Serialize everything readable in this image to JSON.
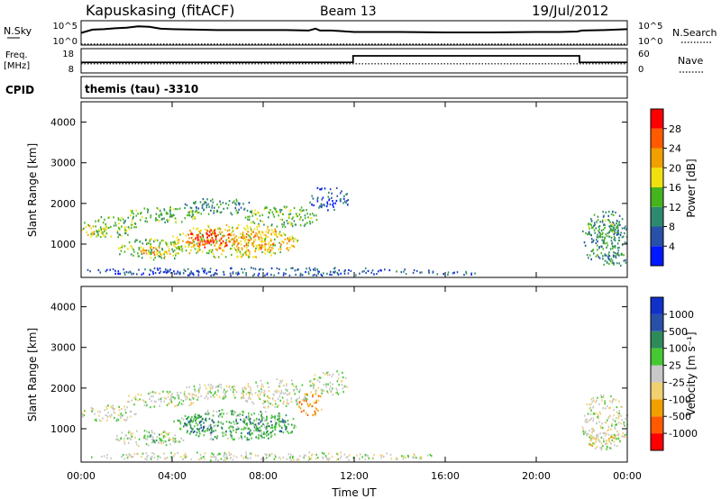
{
  "header": {
    "station": "Kapuskasing (fitACF)",
    "beam": "Beam 13",
    "date": "19/Jul/2012",
    "cpid": "themis (tau) -3310"
  },
  "strip_labels": {
    "nsky": "N.Sky",
    "nsearch": "N.Search",
    "freq_top": "Freq.",
    "freq_unit": "[MHz]",
    "cpid_label": "CPID",
    "nave": "Nave",
    "nsky_ticks": [
      "10^5",
      "10^0"
    ],
    "nsearch_ticks": [
      "10^5",
      "10^0"
    ],
    "freq_ticks": [
      "18",
      "8"
    ],
    "nave_ticks": [
      "60",
      "0"
    ]
  },
  "colors": {
    "power": [
      "#0018ff",
      "#2850a8",
      "#2e8a6e",
      "#46b41e",
      "#f0e010",
      "#f0a000",
      "#ff5a00",
      "#ff0000"
    ],
    "velocity": [
      "#ff0000",
      "#ff5a00",
      "#f0a000",
      "#f0d070",
      "#c8c8c8",
      "#46c832",
      "#2e8a5a",
      "#2850a8",
      "#1030c8"
    ],
    "ground_scatter": "#c0c0c0"
  },
  "chart_data": [
    {
      "type": "line",
      "panel": "noise",
      "series": [
        {
          "name": "N.Sky",
          "style": "solid",
          "x": [
            0,
            0.5,
            1,
            1.5,
            2,
            2.5,
            3,
            3.5,
            4,
            5,
            6,
            7,
            8,
            9,
            10,
            10.3,
            10.5,
            11,
            12,
            14,
            16,
            18,
            20,
            21,
            21.8,
            22,
            23,
            24
          ],
          "y": [
            2.4,
            3.1,
            3.2,
            3.4,
            3.5,
            3.8,
            3.7,
            3.3,
            3.2,
            3.1,
            3.0,
            3.0,
            3.0,
            3.0,
            2.9,
            3.3,
            2.9,
            2.9,
            2.6,
            2.6,
            2.5,
            2.5,
            2.6,
            2.6,
            2.7,
            2.9,
            3.0,
            3.2
          ]
        },
        {
          "name": "N.Search",
          "style": "dotted",
          "x": [
            0,
            24
          ],
          "y": [
            0,
            0
          ]
        }
      ],
      "ylim": [
        0,
        5
      ]
    },
    {
      "type": "line",
      "panel": "frequency",
      "series": [
        {
          "name": "Freq.",
          "style": "solid",
          "x": [
            0,
            11.95,
            11.95,
            21.9,
            21.9,
            24
          ],
          "y": [
            12.3,
            12.3,
            15.2,
            15.2,
            12.3,
            12.3
          ]
        },
        {
          "name": "Nave",
          "style": "dotted",
          "x": [
            0,
            24
          ],
          "y": [
            22,
            22
          ],
          "axis": "right"
        }
      ],
      "ylim": [
        8,
        18
      ],
      "y2lim": [
        0,
        60
      ]
    },
    {
      "type": "heatmap",
      "panel": "power",
      "xlabel": "",
      "ylabel": "Slant Range [km]",
      "xlim": [
        0,
        24
      ],
      "ylim": [
        180,
        4500
      ],
      "yticks": [
        "1000",
        "2000",
        "3000",
        "4000"
      ],
      "colorbar": {
        "label": "Power [dB]",
        "ticks": [
          "4",
          "8",
          "12",
          "16",
          "20",
          "24",
          "28"
        ]
      },
      "regions": [
        {
          "t0": 0.0,
          "t1": 2.4,
          "r0": 1150,
          "r1": 1650,
          "level": 3
        },
        {
          "t0": 0.0,
          "t1": 1.2,
          "r0": 1150,
          "r1": 1450,
          "level": 4
        },
        {
          "t0": 2.0,
          "t1": 5.2,
          "r0": 1500,
          "r1": 1900,
          "level": 3
        },
        {
          "t0": 4.5,
          "t1": 7.5,
          "r0": 1700,
          "r1": 2100,
          "level": 2
        },
        {
          "t0": 7.2,
          "t1": 10.5,
          "r0": 1400,
          "r1": 1900,
          "level": 3
        },
        {
          "t0": 1.5,
          "t1": 4.5,
          "r0": 550,
          "r1": 1100,
          "level": 3
        },
        {
          "t0": 2.6,
          "t1": 4.0,
          "r0": 650,
          "r1": 900,
          "level": 5
        },
        {
          "t0": 4.0,
          "t1": 9.5,
          "r0": 650,
          "r1": 1450,
          "level": 4
        },
        {
          "t0": 4.6,
          "t1": 6.6,
          "r0": 850,
          "r1": 1350,
          "level": 6
        },
        {
          "t0": 5.0,
          "t1": 6.0,
          "r0": 950,
          "r1": 1250,
          "level": 7
        },
        {
          "t0": 6.6,
          "t1": 9.2,
          "r0": 800,
          "r1": 1300,
          "level": 5
        },
        {
          "t0": 10.0,
          "t1": 11.8,
          "r0": 1800,
          "r1": 2400,
          "level": 1
        },
        {
          "t0": 0.0,
          "t1": 15.5,
          "r0": 200,
          "r1": 400,
          "level": 1
        },
        {
          "t0": 15.5,
          "t1": 17.5,
          "r0": 200,
          "r1": 300,
          "level": 1
        },
        {
          "t0": 22.0,
          "t1": 24.0,
          "r0": 450,
          "r1": 1800,
          "level": 2
        },
        {
          "t0": 22.2,
          "t1": 23.6,
          "r0": 1100,
          "r1": 1600,
          "level": 3
        },
        {
          "t0": 23.2,
          "t1": 24.0,
          "r0": 450,
          "r1": 800,
          "level": 2
        }
      ]
    },
    {
      "type": "heatmap",
      "panel": "velocity",
      "xlabel": "Time UT",
      "ylabel": "Slant Range [km]",
      "xlim": [
        0,
        24
      ],
      "ylim": [
        180,
        4500
      ],
      "xticks": [
        "00:00",
        "04:00",
        "08:00",
        "12:00",
        "16:00",
        "20:00",
        "00:00"
      ],
      "yticks": [
        "1000",
        "2000",
        "3000",
        "4000"
      ],
      "colorbar": {
        "label": "Velocity [m s⁻¹]",
        "ticks": [
          "-1000",
          "-500",
          "-100",
          "-25",
          "25",
          "100",
          "500",
          "1000"
        ]
      },
      "regions": [
        {
          "t0": 0.0,
          "t1": 2.4,
          "r0": 1150,
          "r1": 1550,
          "level": 4
        },
        {
          "t0": 2.0,
          "t1": 5.2,
          "r0": 1500,
          "r1": 1900,
          "level": 4
        },
        {
          "t0": 4.5,
          "t1": 7.5,
          "r0": 1700,
          "r1": 2100,
          "level": 4
        },
        {
          "t0": 7.0,
          "t1": 10.0,
          "r0": 1500,
          "r1": 2200,
          "level": 4
        },
        {
          "t0": 1.5,
          "t1": 4.5,
          "r0": 550,
          "r1": 950,
          "level": 4
        },
        {
          "t0": 2.6,
          "t1": 4.0,
          "r0": 650,
          "r1": 900,
          "level": 5
        },
        {
          "t0": 4.0,
          "t1": 9.5,
          "r0": 700,
          "r1": 1450,
          "level": 5
        },
        {
          "t0": 4.5,
          "t1": 6.0,
          "r0": 850,
          "r1": 1300,
          "level": 6
        },
        {
          "t0": 6.6,
          "t1": 9.0,
          "r0": 800,
          "r1": 1300,
          "level": 6
        },
        {
          "t0": 9.5,
          "t1": 10.6,
          "r0": 1300,
          "r1": 1900,
          "level": 2
        },
        {
          "t0": 10.0,
          "t1": 11.8,
          "r0": 1800,
          "r1": 2400,
          "level": 4
        },
        {
          "t0": 0.0,
          "t1": 15.5,
          "r0": 200,
          "r1": 400,
          "level": 4
        },
        {
          "t0": 22.0,
          "t1": 24.0,
          "r0": 450,
          "r1": 1800,
          "level": 4
        },
        {
          "t0": 22.2,
          "t1": 23.4,
          "r0": 500,
          "r1": 900,
          "level": 3
        }
      ]
    }
  ]
}
